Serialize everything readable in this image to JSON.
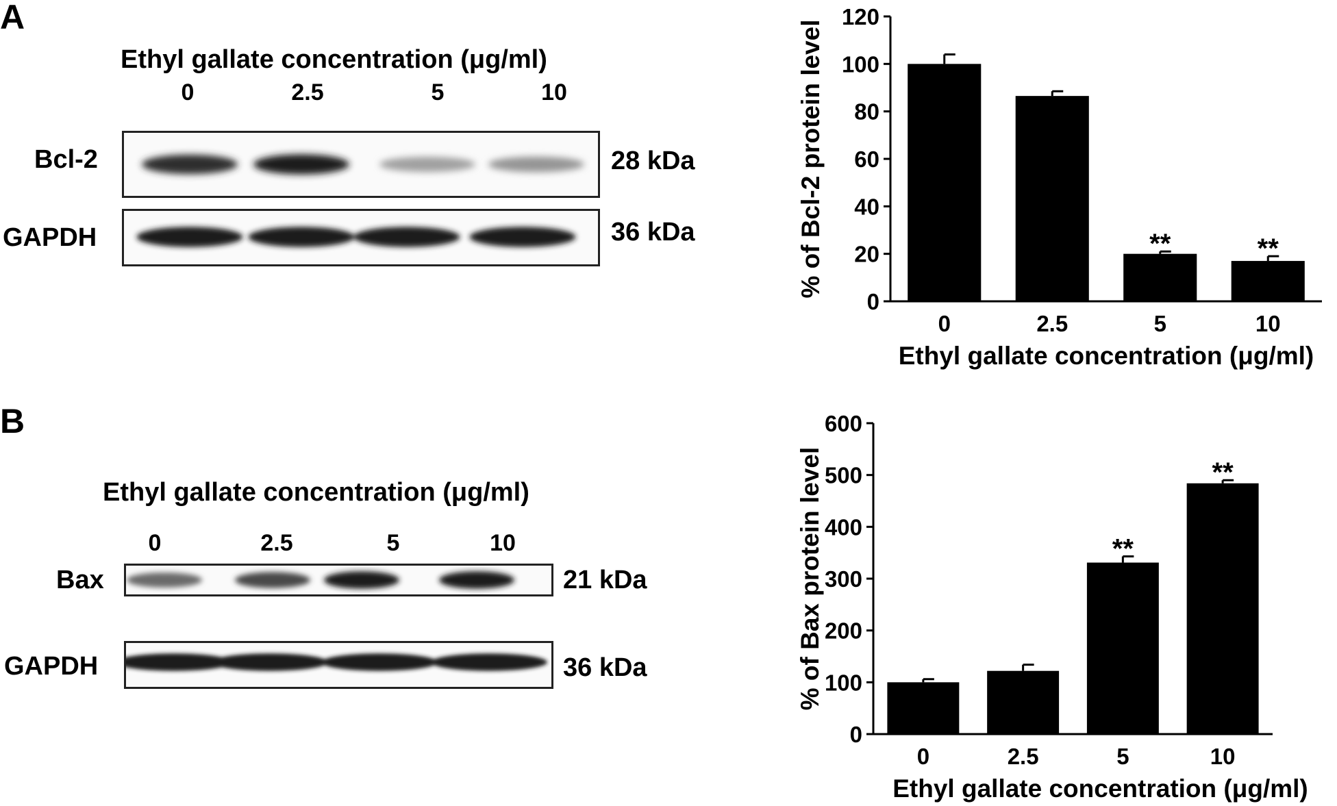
{
  "panelA": {
    "letter": "A",
    "blot": {
      "title": "Ethyl gallate concentration (μg/ml)",
      "lanes": [
        "0",
        "2.5",
        "5",
        "10"
      ],
      "rows": [
        {
          "label": "Bcl-2",
          "kda": "28 kDa",
          "band_intensity": [
            0.88,
            0.95,
            0.35,
            0.4
          ]
        },
        {
          "label": "GAPDH",
          "kda": "36 kDa",
          "band_intensity": [
            0.95,
            0.95,
            0.95,
            0.95
          ]
        }
      ]
    },
    "chart_data": {
      "type": "bar",
      "categories": [
        "0",
        "2.5",
        "5",
        "10"
      ],
      "values": [
        100,
        86.5,
        20,
        17
      ],
      "errors": [
        4,
        2,
        1,
        2
      ],
      "significance": [
        "",
        "",
        "**",
        "**"
      ],
      "xlabel": "Ethyl gallate concentration (μg/ml)",
      "ylabel": "% of Bcl-2 protein level",
      "ylim": [
        0,
        120
      ],
      "yticks": [
        0,
        20,
        40,
        60,
        80,
        100,
        120
      ],
      "bar_color": "#000000"
    }
  },
  "panelB": {
    "letter": "B",
    "blot": {
      "title": "Ethyl gallate concentration (μg/ml)",
      "lanes": [
        "0",
        "2.5",
        "5",
        "10"
      ],
      "rows": [
        {
          "label": "Bax",
          "kda": "21 kDa",
          "band_intensity": [
            0.6,
            0.75,
            0.95,
            0.95
          ]
        },
        {
          "label": "GAPDH",
          "kda": "36 kDa",
          "band_intensity": [
            0.95,
            0.95,
            0.95,
            0.95
          ]
        }
      ]
    },
    "chart_data": {
      "type": "bar",
      "categories": [
        "0",
        "2.5",
        "5",
        "10"
      ],
      "values": [
        100,
        122,
        331,
        484
      ],
      "errors": [
        6,
        12,
        12,
        6
      ],
      "significance": [
        "",
        "",
        "**",
        "**"
      ],
      "xlabel": "Ethyl gallate concentration (μg/ml)",
      "ylabel": "% of Bax protein level",
      "ylim": [
        0,
        600
      ],
      "yticks": [
        0,
        100,
        200,
        300,
        400,
        500,
        600
      ],
      "bar_color": "#000000"
    }
  }
}
